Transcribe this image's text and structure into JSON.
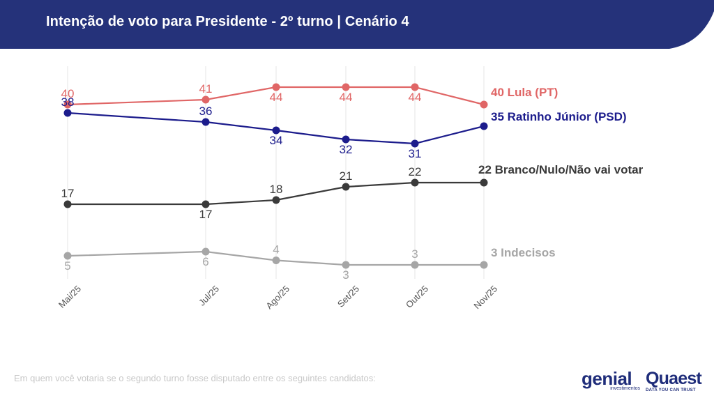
{
  "header": {
    "title": "Intenção de voto para Presidente - 2º turno | Cenário 4",
    "background": "#25327a"
  },
  "footnote": "Em quem você votaria se o segundo turno fosse disputado entre os seguintes candidatos:",
  "logos": {
    "genial": {
      "word": "genial",
      "sub": "investimentos"
    },
    "quaest": {
      "word": "Quaest",
      "tag": "DATA YOU CAN TRUST"
    }
  },
  "chart_data": {
    "type": "line",
    "title": "Intenção de voto para Presidente - 2º turno | Cenário 4",
    "xlabel": "",
    "ylabel": "",
    "x": [
      "Mai/25",
      "Jul/25",
      "Ago/25",
      "Set/25",
      "Out/25",
      "Nov/25"
    ],
    "ylim": [
      0,
      48
    ],
    "grid": "vertical",
    "legend": "end-labels-right",
    "series": [
      {
        "name": "Lula (PT)",
        "values": [
          40,
          41,
          44,
          44,
          44,
          40
        ],
        "color": "#e06666",
        "end_label": "40 Lula (PT)"
      },
      {
        "name": "Ratinho Júnior (PSD)",
        "values": [
          38,
          36,
          34,
          32,
          31,
          35
        ],
        "color": "#1c1c8c",
        "end_label": "35 Ratinho Júnior (PSD)"
      },
      {
        "name": "Branco/Nulo/Não vai votar",
        "values": [
          17,
          17,
          18,
          21,
          22,
          22
        ],
        "color": "#3a3a3a",
        "end_label": "22 Branco/Nulo/Não vai votar"
      },
      {
        "name": "Indecisos",
        "values": [
          5,
          6,
          4,
          3,
          3,
          3
        ],
        "color": "#a6a6a6",
        "end_label": "3 Indecisos"
      }
    ]
  }
}
